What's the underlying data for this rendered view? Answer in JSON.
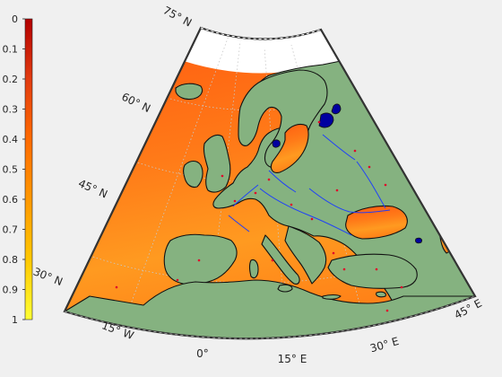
{
  "colorbar": {
    "ticks": [
      "0",
      "0.1",
      "0.2",
      "0.3",
      "0.4",
      "0.5",
      "0.6",
      "0.7",
      "0.8",
      "0.9",
      "1"
    ],
    "colormap": [
      "#b30000",
      "#e23b10",
      "#ff6a00",
      "#ff9800",
      "#ffc800",
      "#ffff33"
    ]
  },
  "map": {
    "projection": "conic",
    "latitude_labels": [
      "75° N",
      "60° N",
      "45° N",
      "30° N"
    ],
    "longitude_labels": [
      "15° W",
      "0°",
      "15° E",
      "30° E",
      "45° E"
    ],
    "colors": {
      "land": "#85b280",
      "sea_high": "#ff6a1a",
      "sea_low": "#ffb020",
      "arctic_gap": "#ffffff",
      "rivers": "#1a3aff",
      "lakes": "#0000a0",
      "cities": "#e0002a",
      "frame": "#333333",
      "graticule": "#c8c8c8"
    }
  }
}
